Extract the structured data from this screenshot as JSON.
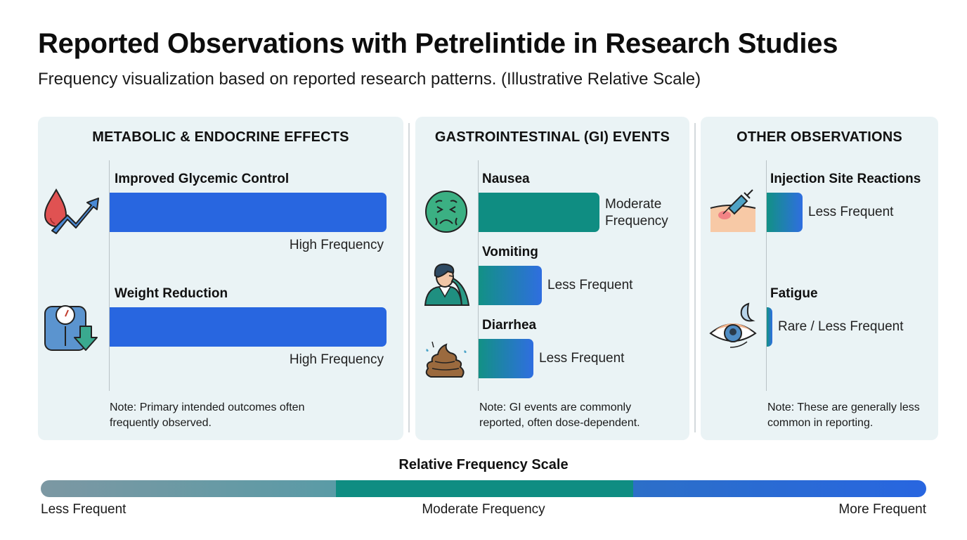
{
  "header": {
    "title": "Reported Observations with Petrelintide in Research Studies",
    "subtitle": "Frequency visualization based on reported research patterns. (Illustrative Relative Scale)"
  },
  "colors": {
    "high": "#2866e0",
    "moderate": "#0f8d82",
    "less_start": "#129185",
    "less_end": "#2f6ee0",
    "panel_bg": "#eaf3f5",
    "scale_less": "#7c98a3",
    "scale_less_end": "#5a9ba6"
  },
  "chart_data": {
    "type": "bar",
    "orientation": "horizontal",
    "title": "Reported Observations with Petrelintide in Research Studies",
    "subtitle": "Frequency visualization based on reported research patterns. (Illustrative Relative Scale)",
    "value_scale": "relative frequency (illustrative, 0 to 1)",
    "groups": [
      {
        "name": "METABOLIC & ENDOCRINE EFFECTS",
        "note": "Note: Primary intended outcomes often frequently observed.",
        "items": [
          {
            "label": "Improved Glycemic Control",
            "frequency": "High Frequency",
            "value": 1.0,
            "icon": "blood-drop-trend-up-icon"
          },
          {
            "label": "Weight Reduction",
            "frequency": "High Frequency",
            "value": 1.0,
            "icon": "scale-down-arrow-icon"
          }
        ]
      },
      {
        "name": "GASTROINTESTINAL (GI) EVENTS",
        "note": "Note: GI events are commonly reported, often dose-dependent.",
        "items": [
          {
            "label": "Nausea",
            "frequency": "Moderate Frequency",
            "value": 0.44,
            "icon": "nauseated-face-icon"
          },
          {
            "label": "Vomiting",
            "frequency": "Less Frequent",
            "value": 0.23,
            "icon": "vomiting-person-icon"
          },
          {
            "label": "Diarrhea",
            "frequency": "Less Frequent",
            "value": 0.2,
            "icon": "stool-icon"
          }
        ]
      },
      {
        "name": "OTHER OBSERVATIONS",
        "note": "Note: These are generally less common in reporting.",
        "items": [
          {
            "label": "Injection Site Reactions",
            "frequency": "Less Frequent",
            "value": 0.13,
            "icon": "syringe-skin-icon"
          },
          {
            "label": "Fatigue",
            "frequency": "Rare / Less Frequent",
            "value": 0.02,
            "icon": "tired-eye-moon-icon"
          }
        ]
      }
    ],
    "legend": {
      "title": "Relative Frequency Scale",
      "labels": [
        "Less Frequent",
        "Moderate Frequency",
        "More Frequent"
      ],
      "position": "bottom"
    }
  }
}
